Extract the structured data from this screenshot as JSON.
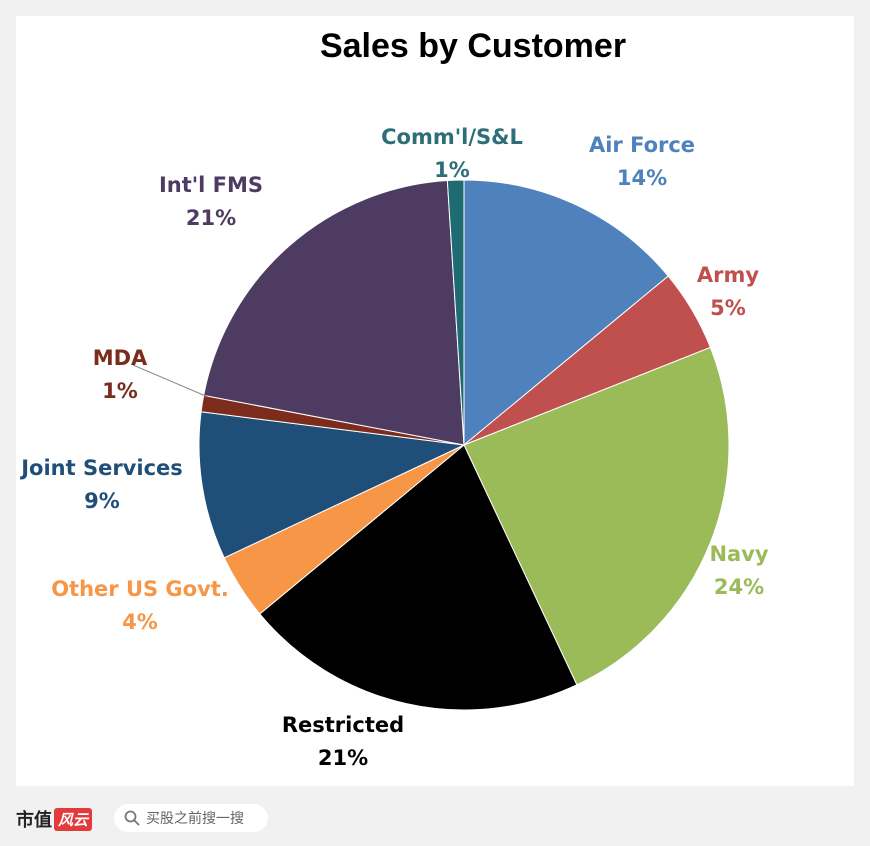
{
  "chart_data": {
    "type": "pie",
    "title": "Sales by Customer",
    "slices": [
      {
        "label": "Air Force",
        "pct_label": "14%",
        "value": 14,
        "color": "#4f81bd"
      },
      {
        "label": "Army",
        "pct_label": "5%",
        "value": 5,
        "color": "#c0504d"
      },
      {
        "label": "Navy",
        "pct_label": "24%",
        "value": 24,
        "color": "#9bbb59"
      },
      {
        "label": "Restricted",
        "pct_label": "21%",
        "value": 21,
        "color": "#000000"
      },
      {
        "label": "Other US Govt.",
        "pct_label": "4%",
        "value": 4,
        "color": "#f79646"
      },
      {
        "label": "Joint Services",
        "pct_label": "9%",
        "value": 9,
        "color": "#1f4e79"
      },
      {
        "label": "MDA",
        "pct_label": "1%",
        "value": 1,
        "color": "#7b2c1c"
      },
      {
        "label": "Int'l FMS",
        "pct_label": "21%",
        "value": 21,
        "color": "#4e3b62"
      },
      {
        "label": "Comm'l/S&L",
        "pct_label": "1%",
        "value": 1,
        "color": "#1f6b73"
      }
    ],
    "label_colors": {
      "Air Force": "#4f81bd",
      "Army": "#c0504d",
      "Navy": "#9bbb59",
      "Restricted": "#000000",
      "Other US Govt.": "#f79646",
      "Joint Services": "#1f4e79",
      "MDA": "#7b2c1c",
      "Int'l FMS": "#4e3b62",
      "Comm'l/S&L": "#2e6e78"
    }
  },
  "footer": {
    "brand_name": "市值",
    "brand_badge": "风云",
    "search_text": "买股之前搜一搜"
  }
}
